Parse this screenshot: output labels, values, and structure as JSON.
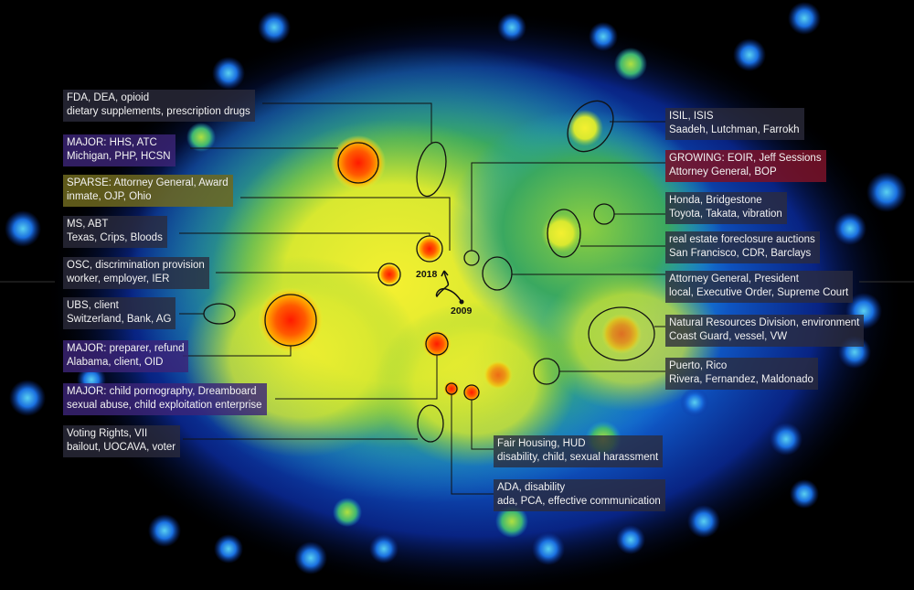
{
  "labels": {
    "fda": {
      "line1": "FDA, DEA, opioid",
      "line2": "dietary supplements, prescription drugs",
      "kind": "normal"
    },
    "hhs": {
      "line1": "MAJOR: HHS, ATC",
      "line2": "Michigan, PHP, HCSN",
      "kind": "major"
    },
    "sparse": {
      "line1": "SPARSE: Attorney General, Award",
      "line2": "inmate, OJP, Ohio",
      "kind": "sparse"
    },
    "ms": {
      "line1": "MS, ABT",
      "line2": "Texas, Crips, Bloods",
      "kind": "normal"
    },
    "osc": {
      "line1": "OSC, discrimination provision",
      "line2": "worker, employer, IER",
      "kind": "normal"
    },
    "ubs": {
      "line1": "UBS, client",
      "line2": "Switzerland, Bank, AG",
      "kind": "normal"
    },
    "preparer": {
      "line1": "MAJOR: preparer, refund",
      "line2": "Alabama, client, OID",
      "kind": "major"
    },
    "child": {
      "line1": "MAJOR: child pornography, Dreamboard",
      "line2": "sexual abuse, child exploitation enterprise",
      "kind": "major"
    },
    "voting": {
      "line1": "Voting Rights, VII",
      "line2": "bailout, UOCAVA, voter",
      "kind": "normal"
    },
    "isil": {
      "line1": "ISIL, ISIS",
      "line2": "Saadeh, Lutchman, Farrokh",
      "kind": "normal"
    },
    "growing": {
      "line1": "GROWING: EOIR, Jeff Sessions",
      "line2": "Attorney General, BOP",
      "kind": "growing"
    },
    "honda": {
      "line1": "Honda, Bridgestone",
      "line2": "Toyota, Takata, vibration",
      "kind": "normal"
    },
    "realestate": {
      "line1": "real estate foreclosure auctions",
      "line2": "San Francisco, CDR, Barclays",
      "kind": "normal"
    },
    "agpres": {
      "line1": "Attorney General, President",
      "line2": "local, Executive Order, Supreme Court",
      "kind": "normal"
    },
    "nrd": {
      "line1": "Natural Resources Division, environment",
      "line2": "Coast Guard, vessel, VW",
      "kind": "normal"
    },
    "puerto": {
      "line1": "Puerto, Rico",
      "line2": "Rivera, Fernandez, Maldonado",
      "kind": "normal"
    },
    "fairhousing": {
      "line1": "Fair Housing, HUD",
      "line2": "disability, child, sexual harassment",
      "kind": "normal"
    },
    "ada": {
      "line1": "ADA, disability",
      "line2": "ada, PCA, effective communication",
      "kind": "normal"
    }
  },
  "timeline": {
    "start_label": "2009",
    "end_label": "2018"
  }
}
